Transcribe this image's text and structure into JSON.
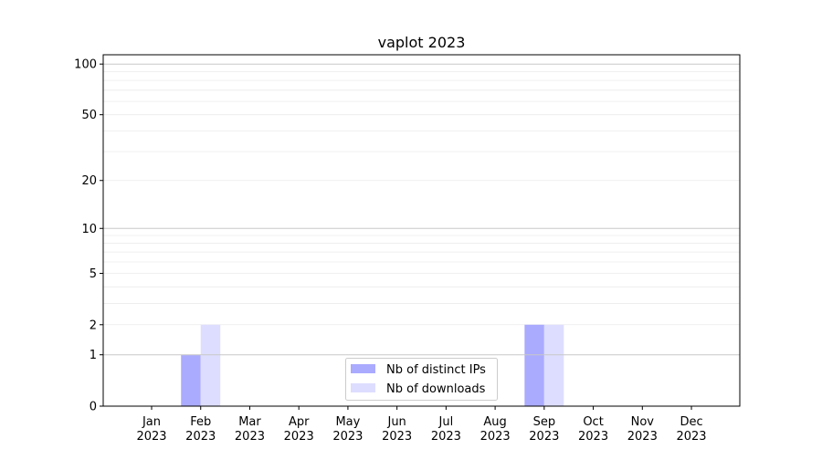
{
  "chart_data": {
    "type": "bar",
    "title": "vaplot 2023",
    "xlabel": "",
    "ylabel": "",
    "y_scale": "log10(1+y)",
    "ylim": [
      0,
      113.5
    ],
    "yticks": [
      0,
      1,
      2,
      5,
      10,
      20,
      50,
      100
    ],
    "grid": "horizontal, major at 1/10/100, minor at 2-9 and 20-90",
    "categories": [
      "Jan\n2023",
      "Feb\n2023",
      "Mar\n2023",
      "Apr\n2023",
      "May\n2023",
      "Jun\n2023",
      "Jul\n2023",
      "Aug\n2023",
      "Sep\n2023",
      "Oct\n2023",
      "Nov\n2023",
      "Dec\n2023"
    ],
    "series": [
      {
        "name": "Nb of distinct IPs",
        "color": "#aaaaff",
        "values": [
          0,
          1,
          0,
          0,
          0,
          0,
          0,
          0,
          2,
          0,
          0,
          0
        ]
      },
      {
        "name": "Nb of downloads",
        "color": "#ddddff",
        "values": [
          0,
          2,
          0,
          0,
          0,
          0,
          0,
          0,
          2,
          0,
          0,
          0
        ]
      }
    ],
    "legend_placement": "lower-center"
  }
}
